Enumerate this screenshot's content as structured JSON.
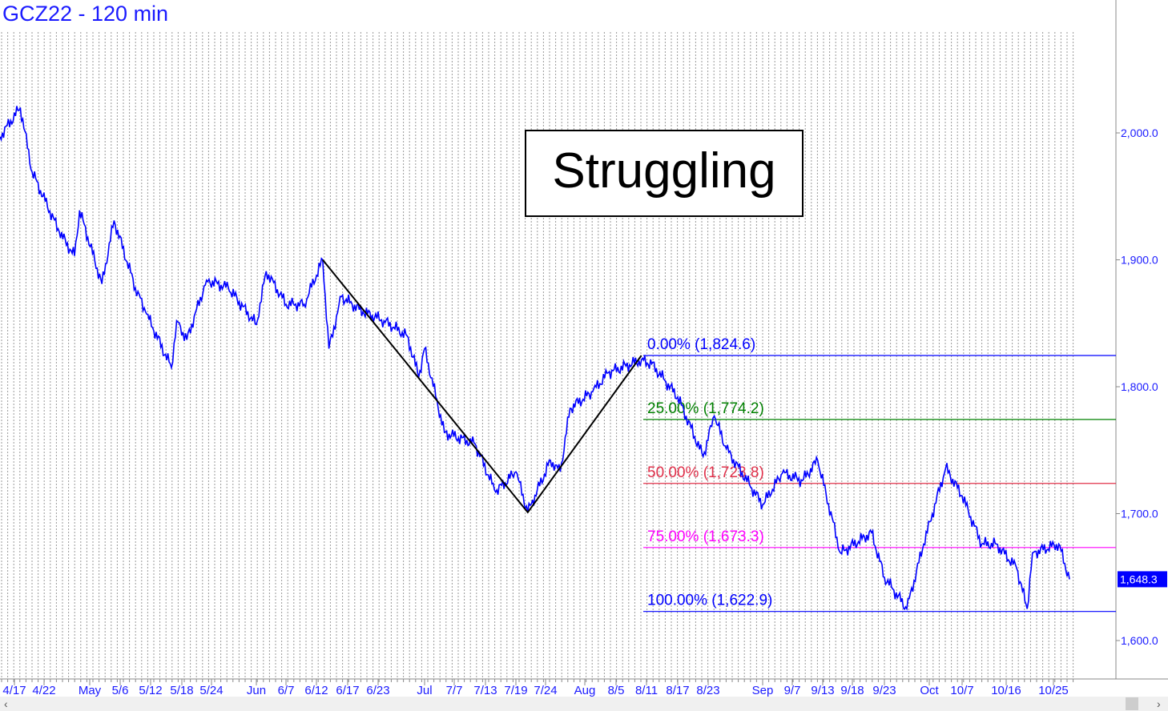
{
  "chart_data": {
    "type": "line",
    "title": "GCZ22 - 120 min",
    "annotation": "Struggling",
    "ylim": [
      1560,
      2085
    ],
    "y_ticks": [
      2000,
      1900,
      1800,
      1700,
      1600
    ],
    "y_tick_labels": [
      "2,000.0",
      "1,900.0",
      "1,800.0",
      "1,700.0",
      "1,600.0"
    ],
    "last_price_label": "1,648.3",
    "last_price": 1648.3,
    "x_tick_labels": [
      "4/17",
      "4/22",
      "May",
      "5/6",
      "5/12",
      "5/18",
      "5/24",
      "Jun",
      "6/7",
      "6/12",
      "6/17",
      "6/23",
      "Jul",
      "7/7",
      "7/13",
      "7/19",
      "7/24",
      "Aug",
      "8/5",
      "8/11",
      "8/17",
      "8/23",
      "Sep",
      "9/7",
      "9/13",
      "9/18",
      "9/23",
      "Oct",
      "10/7",
      "10/16",
      "10/25"
    ],
    "grid": "vertical dotted",
    "series_color": "#0000ff",
    "price": [
      [
        "4/14",
        1997
      ],
      [
        "4/18",
        2020
      ],
      [
        "4/20",
        1969
      ],
      [
        "4/25",
        1922
      ],
      [
        "4/28",
        1903
      ],
      [
        "4/29",
        1939
      ],
      [
        "5/3",
        1881
      ],
      [
        "5/5",
        1931
      ],
      [
        "5/9",
        1878
      ],
      [
        "5/11",
        1859
      ],
      [
        "5/16",
        1815
      ],
      [
        "5/17",
        1852
      ],
      [
        "5/19",
        1837
      ],
      [
        "5/23",
        1884
      ],
      [
        "5/27",
        1878
      ],
      [
        "6/1",
        1849
      ],
      [
        "6/3",
        1891
      ],
      [
        "6/7",
        1865
      ],
      [
        "6/10",
        1865
      ],
      [
        "6/13",
        1900
      ],
      [
        "6/14",
        1830
      ],
      [
        "6/16",
        1871
      ],
      [
        "6/20",
        1859
      ],
      [
        "6/24",
        1852
      ],
      [
        "6/28",
        1840
      ],
      [
        "6/30",
        1808
      ],
      [
        "7/1",
        1830
      ],
      [
        "7/5",
        1764
      ],
      [
        "7/11",
        1755
      ],
      [
        "7/15",
        1717
      ],
      [
        "7/19",
        1733
      ],
      [
        "7/21",
        1701
      ],
      [
        "7/25",
        1742
      ],
      [
        "7/27",
        1733
      ],
      [
        "7/29",
        1783
      ],
      [
        "8/2",
        1796
      ],
      [
        "8/4",
        1811
      ],
      [
        "8/10",
        1821
      ],
      [
        "8/12",
        1818
      ],
      [
        "8/17",
        1792
      ],
      [
        "8/22",
        1745
      ],
      [
        "8/24",
        1777
      ],
      [
        "8/26",
        1751
      ],
      [
        "9/1",
        1707
      ],
      [
        "9/5",
        1732
      ],
      [
        "9/9",
        1726
      ],
      [
        "9/12",
        1742
      ],
      [
        "9/16",
        1669
      ],
      [
        "9/21",
        1685
      ],
      [
        "9/23",
        1650
      ],
      [
        "9/27",
        1625
      ],
      [
        "9/30",
        1676
      ],
      [
        "10/4",
        1736
      ],
      [
        "10/7",
        1714
      ],
      [
        "10/11",
        1676
      ],
      [
        "10/14",
        1676
      ],
      [
        "10/18",
        1657
      ],
      [
        "10/20",
        1625
      ],
      [
        "10/21",
        1669
      ],
      [
        "10/26",
        1676
      ],
      [
        "10/28",
        1648.3
      ]
    ],
    "zigzag": [
      [
        "6/13",
        1900
      ],
      [
        "7/21",
        1701
      ],
      [
        "8/10",
        1824.6
      ]
    ],
    "fib_levels": [
      {
        "label": "0.00% (1,824.6)",
        "value": 1824.6,
        "color": "#0000ff"
      },
      {
        "label": "25.00% (1,774.2)",
        "value": 1774.2,
        "color": "#008000"
      },
      {
        "label": "50.00% (1,723.8)",
        "value": 1723.8,
        "color": "#e0304a"
      },
      {
        "label": "75.00% (1,673.3)",
        "value": 1673.3,
        "color": "#ff00ff"
      },
      {
        "label": "100.00% (1,622.9)",
        "value": 1622.9,
        "color": "#0000ff"
      }
    ]
  }
}
